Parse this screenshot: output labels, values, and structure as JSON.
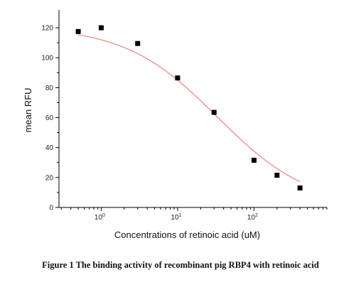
{
  "chart_data": {
    "type": "scatter",
    "title": "",
    "xlabel": "Concentrations of retinoic acid (uM)",
    "ylabel": "mean RFU",
    "x_scale": "log",
    "xlim": [
      0.28,
      900
    ],
    "ylim": [
      0,
      130
    ],
    "x_ticks": [
      {
        "value": 1,
        "base": "10",
        "exp": "0"
      },
      {
        "value": 10,
        "base": "10",
        "exp": "1"
      },
      {
        "value": 100,
        "base": "10",
        "exp": "2"
      }
    ],
    "y_ticks": [
      0,
      20,
      40,
      60,
      80,
      100,
      120
    ],
    "grid": false,
    "legend": "none",
    "series": [
      {
        "marker": "square",
        "x": [
          0.5,
          1,
          3,
          10,
          30,
          100,
          200,
          400
        ],
        "y": [
          117.5,
          120,
          109.5,
          86.5,
          63.5,
          31.5,
          21.5,
          13
        ]
      }
    ],
    "fit_curve": {
      "type": "logistic",
      "top": 121,
      "bottom": 0,
      "ec50": 33,
      "hill": 0.72,
      "color": "#f08080"
    },
    "marker_color": "#000000"
  },
  "caption": "Figure 1 The binding activity of recombinant pig RBP4 with retinoic acid"
}
